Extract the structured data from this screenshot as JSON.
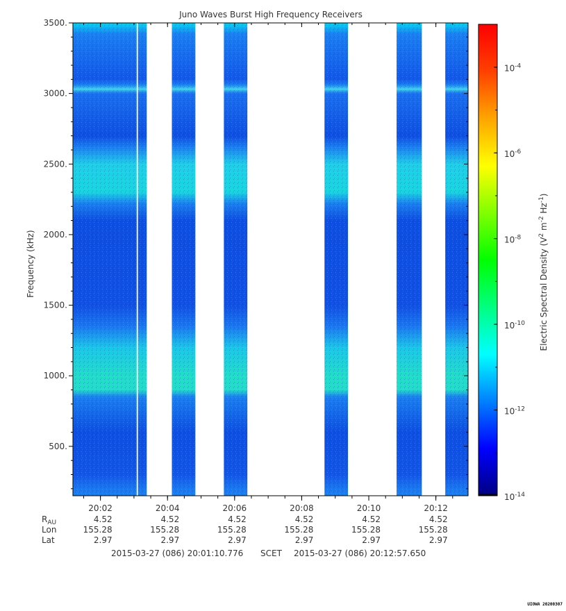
{
  "chart_data": {
    "type": "heatmap",
    "title": "Juno Waves Burst High Frequency Receivers",
    "ylabel": "Frequency (kHz)",
    "ylim": [
      150,
      3500
    ],
    "y_ticks": [
      "500.",
      "1000.",
      "1500.",
      "2000.",
      "2500.",
      "3000.",
      "3500."
    ],
    "y_tick_values": [
      500,
      1000,
      1500,
      2000,
      2500,
      3000,
      3500
    ],
    "x_range_minutes": [
      0,
      11.78
    ],
    "x_ticks": [
      "20:02",
      "20:04",
      "20:06",
      "20:08",
      "20:10",
      "20:12"
    ],
    "x_tick_minutes": [
      0.82,
      2.82,
      4.82,
      6.82,
      8.82,
      10.82
    ],
    "data_intervals_minutes": [
      [
        0,
        2.2
      ],
      [
        2.95,
        3.65
      ],
      [
        4.5,
        5.2
      ],
      [
        7.5,
        8.2
      ],
      [
        9.65,
        10.4
      ],
      [
        11.1,
        11.78
      ]
    ],
    "spectral_density_bands": [
      {
        "freq_range_khz": [
          2200,
          2650
        ],
        "level": "~1e-11 (cyan-green)"
      },
      {
        "freq_range_khz": [
          850,
          1250
        ],
        "level": "~1e-10.5 (green-cyan)"
      },
      {
        "freq_range_khz": [
          3000,
          3060
        ],
        "level": "~1e-11 (cyan line)"
      },
      {
        "freq_range_khz": [
          150,
          3500
        ],
        "level": "background ~1e-12 (blue)"
      }
    ],
    "colorbar": {
      "label": "Electric Spectral Density (V² m⁻² Hz⁻¹)",
      "label_main": "Electric Spectral Density (V",
      "scale": "log",
      "range_exponent": [
        -14,
        -3
      ],
      "tick_exponents": [
        -14,
        -12,
        -10,
        -8,
        -6,
        -4
      ],
      "tick_base": "10",
      "tick_labels": [
        "-14",
        "-12",
        "-10",
        "-8",
        "-6",
        "-4"
      ],
      "colors": [
        "#000080",
        "#0000ff",
        "#0080ff",
        "#00ffff",
        "#00ff80",
        "#00ff00",
        "#80ff00",
        "#ffff00",
        "#ffa500",
        "#ff4000",
        "#ff0000"
      ]
    },
    "ephemeris": {
      "row_labels": [
        "R",
        "Lon",
        "Lat"
      ],
      "r_subscript": "AU",
      "r_au": [
        "4.52",
        "4.52",
        "4.52",
        "4.52",
        "4.52",
        "4.52"
      ],
      "lon": [
        "155.28",
        "155.28",
        "155.28",
        "155.28",
        "155.28",
        "155.28"
      ],
      "lat": [
        "2.97",
        "2.97",
        "2.97",
        "2.97",
        "2.97",
        "2.97"
      ]
    },
    "time_range": {
      "start": "2015-03-27 (086) 20:01:10.776",
      "label": "SCET",
      "end": "2015-03-27 (086) 20:12:57.650"
    },
    "footer_tag": "UIOWA 20200307"
  }
}
